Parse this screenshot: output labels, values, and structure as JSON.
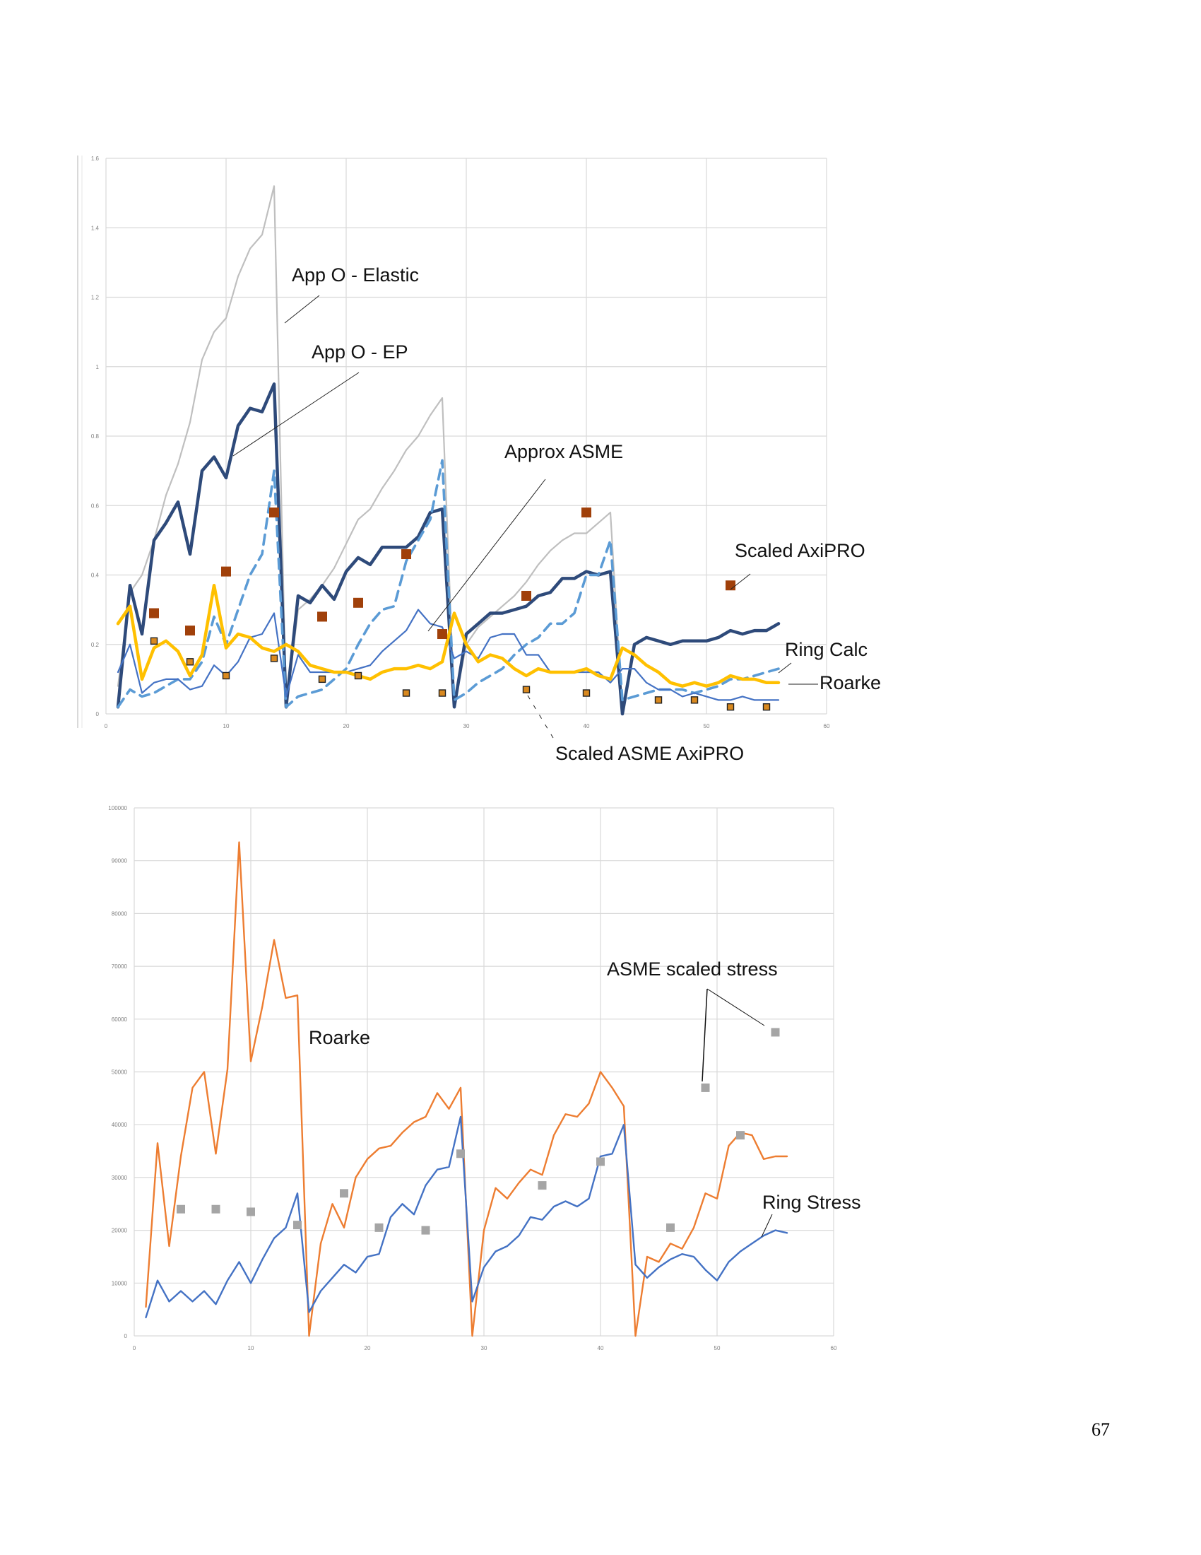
{
  "page_number": "67",
  "chart_data": [
    {
      "type": "line",
      "xlim": [
        0,
        60
      ],
      "ylim": [
        0,
        1.6
      ],
      "x_ticks": [
        "0",
        "10",
        "20",
        "30",
        "40",
        "50",
        "60"
      ],
      "y_ticks": [
        "0",
        "0.2",
        "0.4",
        "0.6",
        "0.8",
        "1",
        "1.2",
        "1.4",
        "1.6"
      ],
      "grid": true,
      "legend": "none",
      "series": [
        {
          "key": "elastic",
          "color": "#bfbfbf",
          "style": "thin",
          "x": [
            1,
            2,
            3,
            4,
            5,
            6,
            7,
            8,
            9,
            10,
            11,
            12,
            13,
            14,
            15,
            16,
            17,
            18,
            19,
            20,
            21,
            22,
            23,
            24,
            25,
            26,
            27,
            28,
            29,
            30,
            31,
            32,
            33,
            34,
            35,
            36,
            37,
            38,
            39,
            40,
            41,
            42,
            43
          ],
          "y": [
            0.08,
            0.35,
            0.4,
            0.5,
            0.63,
            0.72,
            0.84,
            1.02,
            1.1,
            1.14,
            1.26,
            1.34,
            1.38,
            1.52,
            0.02,
            0.3,
            0.33,
            0.37,
            0.42,
            0.49,
            0.56,
            0.59,
            0.65,
            0.7,
            0.76,
            0.8,
            0.86,
            0.91,
            0.02,
            0.2,
            0.25,
            0.28,
            0.31,
            0.34,
            0.38,
            0.43,
            0.47,
            0.5,
            0.52,
            0.52,
            0.55,
            0.58,
            0.0
          ]
        },
        {
          "key": "ep",
          "color": "#2e4a7a",
          "style": "thick",
          "x": [
            1,
            2,
            3,
            4,
            5,
            6,
            7,
            8,
            9,
            10,
            11,
            12,
            13,
            14,
            15,
            16,
            17,
            18,
            19,
            20,
            21,
            22,
            23,
            24,
            25,
            26,
            27,
            28,
            29,
            30,
            31,
            32,
            33,
            34,
            35,
            36,
            37,
            38,
            39,
            40,
            41,
            42,
            43,
            44,
            45,
            46,
            47,
            48,
            49,
            50,
            51,
            52,
            53,
            54,
            55,
            56
          ],
          "y": [
            0.02,
            0.37,
            0.23,
            0.5,
            0.55,
            0.61,
            0.46,
            0.7,
            0.74,
            0.68,
            0.83,
            0.88,
            0.87,
            0.95,
            0.02,
            0.34,
            0.32,
            0.37,
            0.33,
            0.41,
            0.45,
            0.43,
            0.48,
            0.48,
            0.48,
            0.51,
            0.58,
            0.59,
            0.02,
            0.23,
            0.26,
            0.29,
            0.29,
            0.3,
            0.31,
            0.34,
            0.35,
            0.39,
            0.39,
            0.41,
            0.4,
            0.41,
            0.0,
            0.2,
            0.22,
            0.21,
            0.2,
            0.21,
            0.21,
            0.21,
            0.22,
            0.24,
            0.23,
            0.24,
            0.24,
            0.26
          ]
        },
        {
          "key": "approx_asme",
          "color": "#5b9bd5",
          "style": "dashed",
          "x": [
            1,
            2,
            3,
            4,
            5,
            6,
            7,
            8,
            9,
            10,
            11,
            12,
            13,
            14,
            15,
            16,
            17,
            18,
            19,
            20,
            21,
            22,
            23,
            24,
            25,
            26,
            27,
            28,
            29,
            30,
            31,
            32,
            33,
            34,
            35,
            36,
            37,
            38,
            39,
            40,
            41,
            42,
            43,
            44,
            45,
            46,
            47,
            48,
            49,
            50,
            51,
            52,
            53,
            54,
            55,
            56
          ],
          "y": [
            0.02,
            0.07,
            0.05,
            0.06,
            0.08,
            0.1,
            0.1,
            0.15,
            0.28,
            0.2,
            0.3,
            0.4,
            0.46,
            0.7,
            0.02,
            0.05,
            0.06,
            0.07,
            0.1,
            0.13,
            0.2,
            0.26,
            0.3,
            0.31,
            0.44,
            0.5,
            0.56,
            0.73,
            0.04,
            0.06,
            0.09,
            0.11,
            0.13,
            0.17,
            0.2,
            0.22,
            0.26,
            0.26,
            0.29,
            0.4,
            0.4,
            0.5,
            0.04,
            0.05,
            0.06,
            0.07,
            0.07,
            0.07,
            0.06,
            0.07,
            0.08,
            0.1,
            0.1,
            0.11,
            0.12,
            0.13
          ]
        },
        {
          "key": "ring_calc",
          "color": "#4472c4",
          "style": "thin",
          "x": [
            1,
            2,
            3,
            4,
            5,
            6,
            7,
            8,
            9,
            10,
            11,
            12,
            13,
            14,
            15,
            16,
            17,
            18,
            19,
            20,
            21,
            22,
            23,
            24,
            25,
            26,
            27,
            28,
            29,
            30,
            31,
            32,
            33,
            34,
            35,
            36,
            37,
            38,
            39,
            40,
            41,
            42,
            43,
            44,
            45,
            46,
            47,
            48,
            49,
            50,
            51,
            52,
            53,
            54,
            55,
            56
          ],
          "y": [
            0.12,
            0.2,
            0.06,
            0.09,
            0.1,
            0.1,
            0.07,
            0.08,
            0.14,
            0.11,
            0.15,
            0.22,
            0.23,
            0.29,
            0.05,
            0.17,
            0.12,
            0.12,
            0.12,
            0.12,
            0.13,
            0.14,
            0.18,
            0.21,
            0.24,
            0.3,
            0.26,
            0.25,
            0.16,
            0.18,
            0.16,
            0.22,
            0.23,
            0.23,
            0.17,
            0.17,
            0.12,
            0.12,
            0.12,
            0.12,
            0.12,
            0.09,
            0.13,
            0.13,
            0.09,
            0.07,
            0.07,
            0.05,
            0.06,
            0.05,
            0.04,
            0.04,
            0.05,
            0.04,
            0.04,
            0.04
          ]
        },
        {
          "key": "roarke",
          "color": "#ffc000",
          "style": "thick",
          "x": [
            1,
            2,
            3,
            4,
            5,
            6,
            7,
            8,
            9,
            10,
            11,
            12,
            13,
            14,
            15,
            16,
            17,
            18,
            19,
            20,
            21,
            22,
            23,
            24,
            25,
            26,
            27,
            28,
            29,
            30,
            31,
            32,
            33,
            34,
            35,
            36,
            37,
            38,
            39,
            40,
            41,
            42,
            43,
            44,
            45,
            46,
            47,
            48,
            49,
            50,
            51,
            52,
            53,
            54,
            55,
            56
          ],
          "y": [
            0.26,
            0.31,
            0.1,
            0.19,
            0.21,
            0.18,
            0.11,
            0.17,
            0.37,
            0.19,
            0.23,
            0.22,
            0.19,
            0.18,
            0.2,
            0.18,
            0.14,
            0.13,
            0.12,
            0.12,
            0.11,
            0.1,
            0.12,
            0.13,
            0.13,
            0.14,
            0.13,
            0.15,
            0.29,
            0.2,
            0.15,
            0.17,
            0.16,
            0.13,
            0.11,
            0.13,
            0.12,
            0.12,
            0.12,
            0.13,
            0.11,
            0.1,
            0.19,
            0.17,
            0.14,
            0.12,
            0.09,
            0.08,
            0.09,
            0.08,
            0.09,
            0.11,
            0.1,
            0.1,
            0.09,
            0.09
          ]
        }
      ],
      "markers": [
        {
          "key": "scaled_axipro",
          "color": "#a0400a",
          "x": [
            4,
            7,
            10,
            14,
            18,
            21,
            25,
            28,
            35,
            40,
            52
          ],
          "y": [
            0.29,
            0.24,
            0.41,
            0.58,
            0.28,
            0.32,
            0.46,
            0.23,
            0.34,
            0.58,
            0.37
          ]
        },
        {
          "key": "scaled_asme_axipro",
          "color": "#d9891f",
          "x": [
            4,
            7,
            10,
            14,
            18,
            21,
            25,
            28,
            35,
            40,
            46,
            49,
            52,
            55
          ],
          "y": [
            0.21,
            0.15,
            0.11,
            0.16,
            0.1,
            0.11,
            0.06,
            0.06,
            0.07,
            0.06,
            0.04,
            0.04,
            0.02,
            0.02
          ]
        }
      ],
      "annotations": [
        {
          "text": "App O - Elastic"
        },
        {
          "text": "App O - EP"
        },
        {
          "text": "Approx ASME"
        },
        {
          "text": "Scaled AxiPRO"
        },
        {
          "text": "Ring Calc"
        },
        {
          "text": "Roarke"
        },
        {
          "text": "Scaled ASME AxiPRO"
        }
      ]
    },
    {
      "type": "line",
      "xlim": [
        0,
        60
      ],
      "ylim": [
        0,
        100000
      ],
      "x_ticks": [
        "0",
        "10",
        "20",
        "30",
        "40",
        "50",
        "60"
      ],
      "y_ticks": [
        "0",
        "10000",
        "20000",
        "30000",
        "40000",
        "50000",
        "60000",
        "70000",
        "80000",
        "90000",
        "100000"
      ],
      "grid": true,
      "legend": "none",
      "series": [
        {
          "key": "roarke_stress",
          "color": "#ed7d31",
          "x": [
            1,
            2,
            3,
            4,
            5,
            6,
            7,
            8,
            9,
            10,
            11,
            12,
            13,
            14,
            15,
            16,
            17,
            18,
            19,
            20,
            21,
            22,
            23,
            24,
            25,
            26,
            27,
            28,
            29,
            30,
            31,
            32,
            33,
            34,
            35,
            36,
            37,
            38,
            39,
            40,
            41,
            42,
            43,
            44,
            45,
            46,
            47,
            48,
            49,
            50,
            51,
            52,
            53,
            54,
            55,
            56
          ],
          "y": [
            5500,
            36500,
            17000,
            34000,
            47000,
            50000,
            34500,
            50500,
            93500,
            52000,
            62500,
            75000,
            64000,
            64500,
            0,
            17500,
            25000,
            20500,
            30000,
            33500,
            35500,
            36000,
            38500,
            40500,
            41500,
            46000,
            43000,
            47000,
            0,
            20000,
            28000,
            26000,
            29000,
            31500,
            30500,
            38000,
            42000,
            41500,
            44000,
            50000,
            47000,
            43500,
            0,
            15000,
            14000,
            17500,
            16500,
            20500,
            27000,
            26000,
            36000,
            38500,
            38000,
            33500,
            34000,
            34000
          ]
        },
        {
          "key": "ring_stress",
          "color": "#4472c4",
          "x": [
            1,
            2,
            3,
            4,
            5,
            6,
            7,
            8,
            9,
            10,
            11,
            12,
            13,
            14,
            15,
            16,
            17,
            18,
            19,
            20,
            21,
            22,
            23,
            24,
            25,
            26,
            27,
            28,
            29,
            30,
            31,
            32,
            33,
            34,
            35,
            36,
            37,
            38,
            39,
            40,
            41,
            42,
            43,
            44,
            45,
            46,
            47,
            48,
            49,
            50,
            51,
            52,
            53,
            54,
            55,
            56
          ],
          "y": [
            3500,
            10500,
            6500,
            8500,
            6500,
            8500,
            6000,
            10500,
            14000,
            10000,
            14500,
            18500,
            20500,
            27000,
            4500,
            8500,
            11000,
            13500,
            12000,
            15000,
            15500,
            22500,
            25000,
            23000,
            28500,
            31500,
            32000,
            41500,
            6500,
            13000,
            16000,
            17000,
            19000,
            22500,
            22000,
            24500,
            25500,
            24500,
            26000,
            34000,
            34500,
            40000,
            13500,
            11000,
            13000,
            14500,
            15500,
            15000,
            12500,
            10500,
            14000,
            16000,
            17500,
            19000,
            20000,
            19500
          ]
        }
      ],
      "markers": [
        {
          "key": "asme_scaled_stress",
          "color": "#a5a5a5",
          "x": [
            4,
            7,
            10,
            14,
            18,
            21,
            25,
            28,
            35,
            40,
            46,
            49,
            52,
            55
          ],
          "y": [
            24000,
            24000,
            23500,
            21000,
            27000,
            20500,
            20000,
            34500,
            28500,
            33000,
            20500,
            47000,
            38000,
            57500
          ]
        }
      ],
      "annotations": [
        {
          "text": "Roarke"
        },
        {
          "text": "ASME scaled stress"
        },
        {
          "text": "Ring Stress"
        }
      ]
    }
  ]
}
